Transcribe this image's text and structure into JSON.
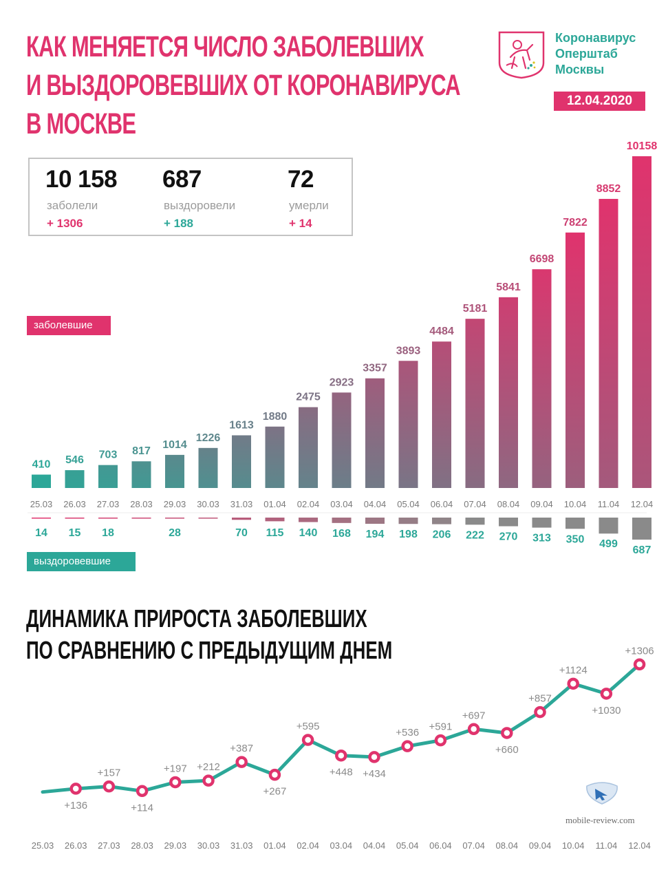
{
  "title_lines": [
    "КАК МЕНЯЕТСЯ ЧИСЛО ЗАБОЛЕВШИХ",
    "И ВЫЗДОРОВЕВШИХ ОТ КОРОНАВИРУСА",
    "В МОСКВЕ"
  ],
  "brand": {
    "line1": "Коронавирус",
    "line2": "Оперштаб",
    "line3": "Москвы",
    "logo_icon": "moscow-coat-of-arms-icon"
  },
  "date": "12.04.2020",
  "stats": [
    {
      "value": "10 158",
      "label": "заболели",
      "delta": "+ 1306",
      "color": "#e0336d"
    },
    {
      "value": "687",
      "label": "выздоровели",
      "delta": "+ 188",
      "color": "#2ca798"
    },
    {
      "value": "72",
      "label": "умерли",
      "delta": "+ 14",
      "color": "#e0336d"
    }
  ],
  "legend": {
    "infected": "заболевшие",
    "recovered": "выздоровевшие"
  },
  "subtitle_lines": [
    "ДИНАМИКА ПРИРОСТА ЗАБОЛЕВШИХ",
    "ПО СРАВНЕНИЮ С ПРЕДЫДУЩИМ ДНЕМ"
  ],
  "watermark": {
    "text": "mobile-review.com",
    "icon": "mobile-review-logo-icon"
  },
  "colors": {
    "pink": "#e0336d",
    "teal": "#2ca798",
    "gray": "#8a8a8a"
  },
  "chart_data": [
    {
      "type": "bar",
      "categories": [
        "25.03",
        "26.03",
        "27.03",
        "28.03",
        "29.03",
        "30.03",
        "31.03",
        "01.04",
        "02.04",
        "03.04",
        "04.04",
        "05.04",
        "06.04",
        "07.04",
        "08.04",
        "09.04",
        "10.04",
        "11.04",
        "12.04"
      ],
      "series": [
        {
          "name": "заболевшие",
          "values": [
            410,
            546,
            703,
            817,
            1014,
            1226,
            1613,
            1880,
            2475,
            2923,
            3357,
            3893,
            4484,
            5181,
            5841,
            6698,
            7822,
            8852,
            10158
          ]
        },
        {
          "name": "выздоровевшие",
          "values": [
            14,
            15,
            18,
            null,
            28,
            null,
            70,
            115,
            140,
            168,
            194,
            198,
            206,
            222,
            270,
            313,
            350,
            499,
            687
          ]
        }
      ],
      "recovered_labels": [
        "14",
        "15",
        "18",
        "",
        "28",
        "",
        "70",
        "115",
        "140",
        "168",
        "194",
        "198",
        "206",
        "222",
        "270",
        "313",
        "350",
        "499",
        "687"
      ]
    },
    {
      "type": "line",
      "x": [
        "25.03",
        "26.03",
        "27.03",
        "28.03",
        "29.03",
        "30.03",
        "31.03",
        "01.04",
        "02.04",
        "03.04",
        "04.04",
        "05.04",
        "06.04",
        "07.04",
        "08.04",
        "09.04",
        "10.04",
        "11.04",
        "12.04"
      ],
      "values": [
        null,
        136,
        157,
        114,
        197,
        212,
        387,
        267,
        595,
        448,
        434,
        536,
        591,
        697,
        660,
        857,
        1124,
        1030,
        1306
      ],
      "labels": [
        "",
        "+136",
        "+157",
        "+114",
        "+197",
        "+212",
        "+387",
        "+267",
        "+595",
        "+448",
        "+434",
        "+536",
        "+591",
        "+697",
        "+660",
        "+857",
        "+1124",
        "+1030",
        "+1306"
      ]
    }
  ]
}
